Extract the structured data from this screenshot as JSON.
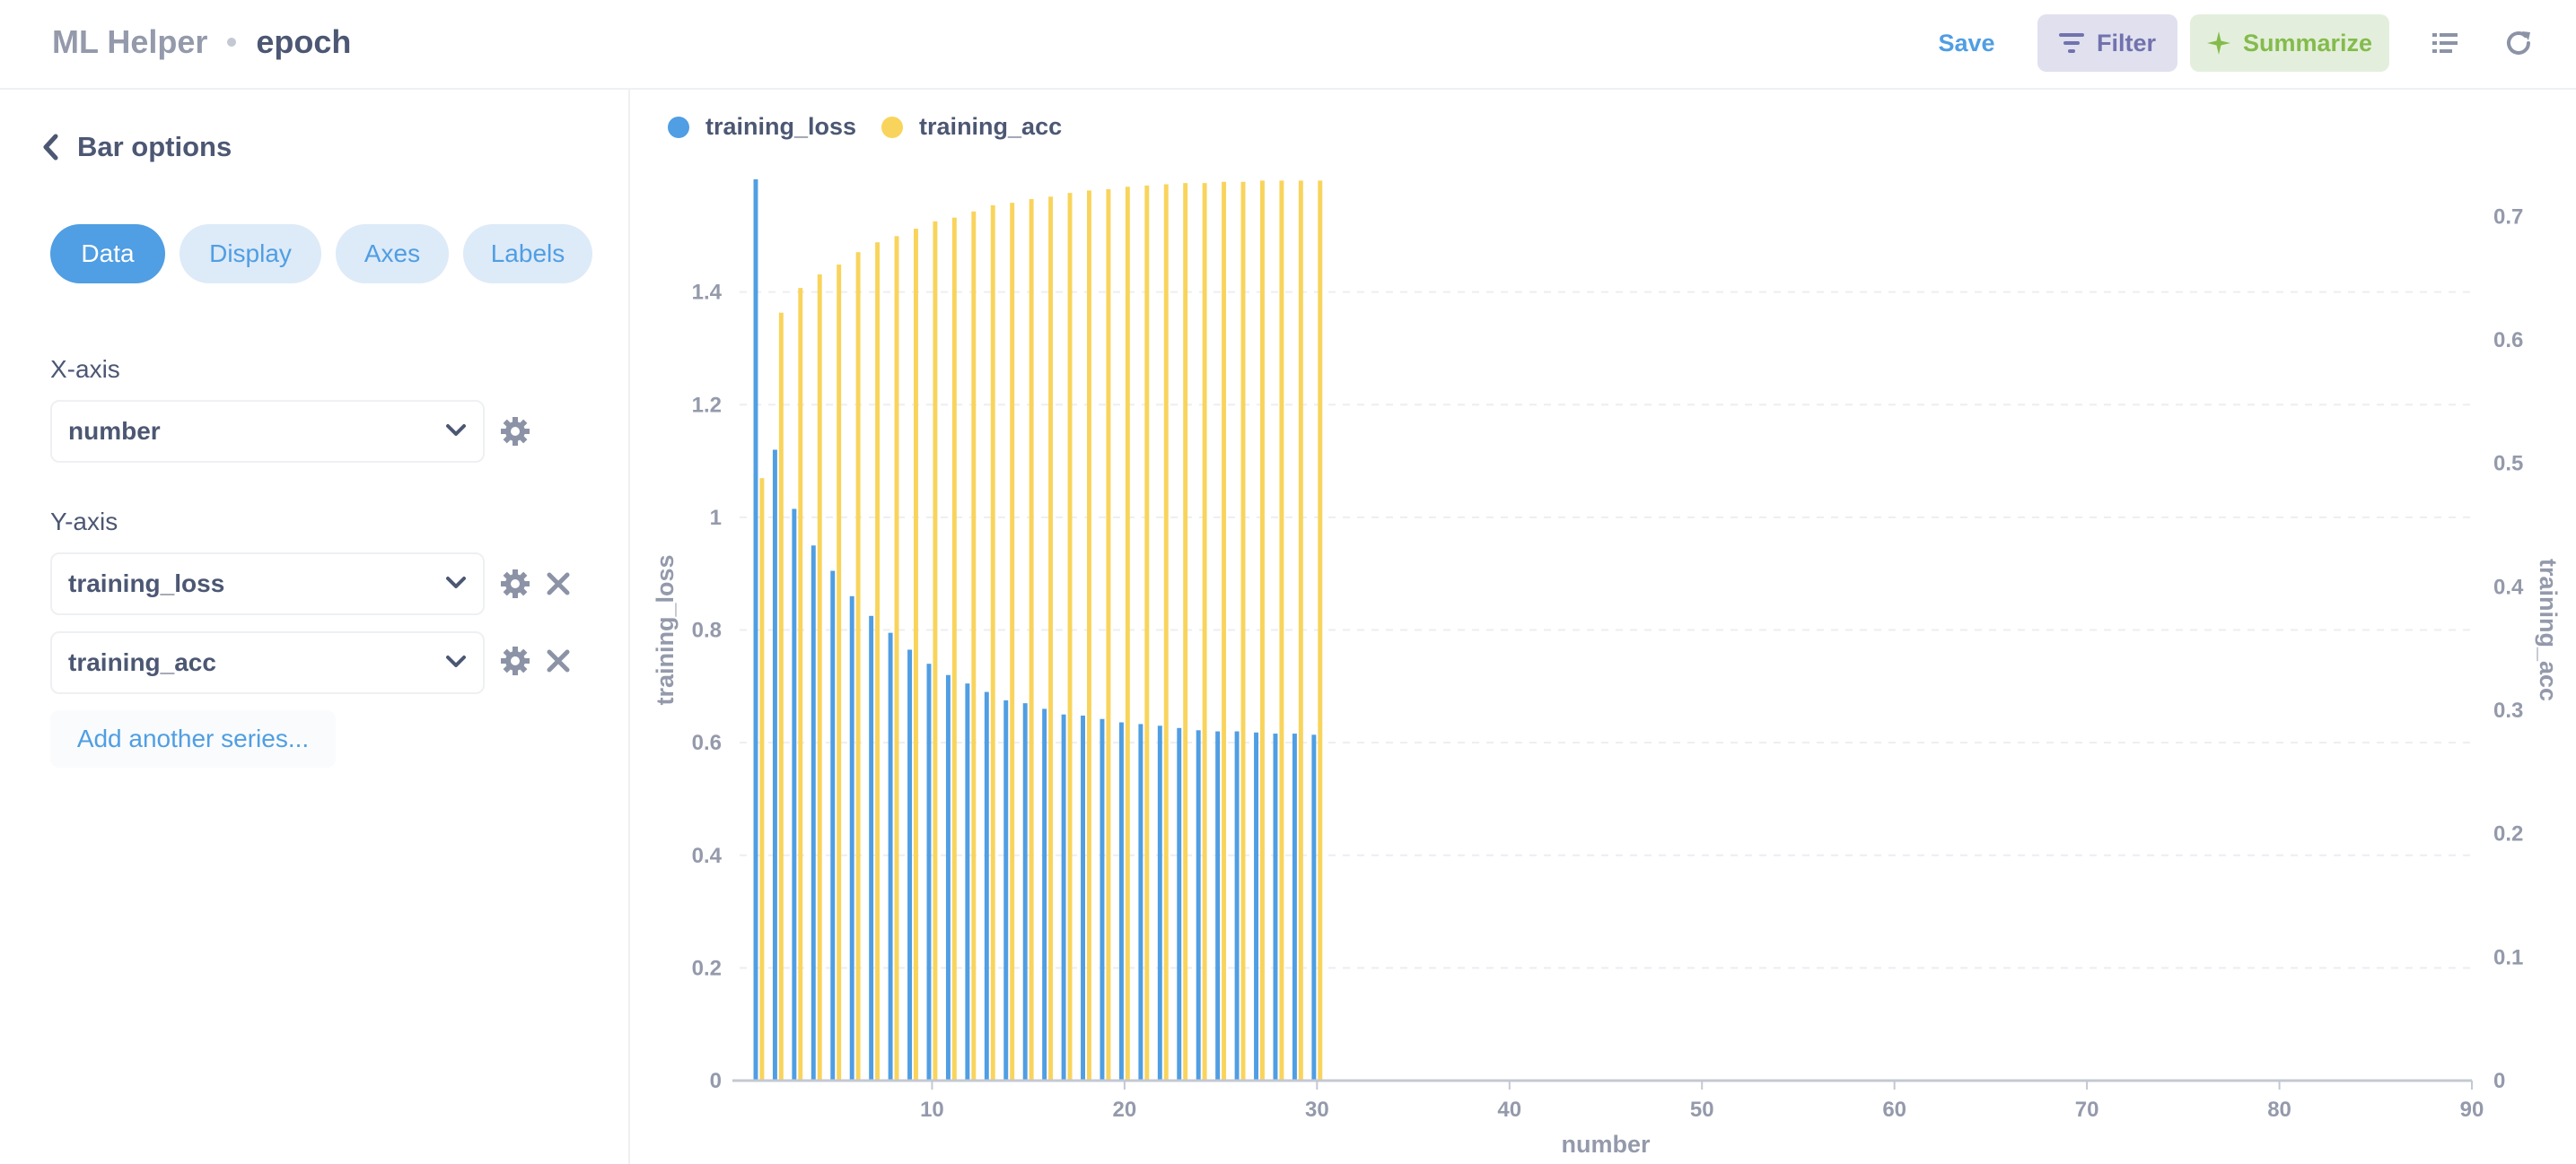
{
  "header": {
    "app_name": "ML Helper",
    "table_name": "epoch",
    "save_label": "Save",
    "filter_label": "Filter",
    "summarize_label": "Summarize",
    "icons": [
      "filter-icon",
      "sparkle-icon",
      "list-icon",
      "refresh-icon"
    ]
  },
  "sidebar": {
    "back_label": "Bar options",
    "tabs": [
      {
        "label": "Data",
        "active": true
      },
      {
        "label": "Display",
        "active": false
      },
      {
        "label": "Axes",
        "active": false
      },
      {
        "label": "Labels",
        "active": false
      }
    ],
    "x_axis_label": "X-axis",
    "x_axis_value": "number",
    "y_axis_label": "Y-axis",
    "y_series": [
      "training_loss",
      "training_acc"
    ],
    "add_series_label": "Add another series..."
  },
  "colors": {
    "accent": "#509ee3",
    "loss": "#509ee3",
    "acc": "#f9d45c",
    "filter": "#7172ad",
    "summarize": "#84bb4c"
  },
  "chart_data": {
    "type": "bar",
    "xlabel": "number",
    "ylabel": "training_loss",
    "y2label": "training_acc",
    "xlim": [
      0,
      90
    ],
    "xticks": [
      10,
      20,
      30,
      40,
      50,
      60,
      70,
      80,
      90
    ],
    "ylim": [
      0,
      1.6
    ],
    "yticks": [
      0,
      0.2,
      0.4,
      0.6,
      0.8,
      1,
      1.2,
      1.4
    ],
    "y2lim": [
      0,
      0.73
    ],
    "y2ticks": [
      0,
      0.1,
      0.2,
      0.3,
      0.4,
      0.5,
      0.6,
      0.7
    ],
    "grid": true,
    "legend": "top-left",
    "x": [
      1,
      2,
      3,
      4,
      5,
      6,
      7,
      8,
      9,
      10,
      11,
      12,
      13,
      14,
      15,
      16,
      17,
      18,
      19,
      20,
      21,
      22,
      23,
      24,
      25,
      26,
      27,
      28,
      29,
      30
    ],
    "series": [
      {
        "name": "training_loss",
        "axis": "left",
        "values": [
          1.6,
          1.12,
          1.015,
          0.95,
          0.905,
          0.86,
          0.825,
          0.795,
          0.765,
          0.74,
          0.72,
          0.705,
          0.69,
          0.675,
          0.67,
          0.66,
          0.65,
          0.648,
          0.642,
          0.636,
          0.633,
          0.63,
          0.626,
          0.622,
          0.62,
          0.62,
          0.618,
          0.616,
          0.616,
          0.614
        ]
      },
      {
        "name": "training_acc",
        "axis": "right",
        "values": [
          0.488,
          0.622,
          0.642,
          0.653,
          0.661,
          0.671,
          0.679,
          0.684,
          0.69,
          0.696,
          0.699,
          0.704,
          0.709,
          0.711,
          0.714,
          0.716,
          0.719,
          0.721,
          0.722,
          0.724,
          0.725,
          0.726,
          0.727,
          0.727,
          0.728,
          0.728,
          0.729,
          0.729,
          0.729,
          0.729
        ]
      }
    ]
  }
}
